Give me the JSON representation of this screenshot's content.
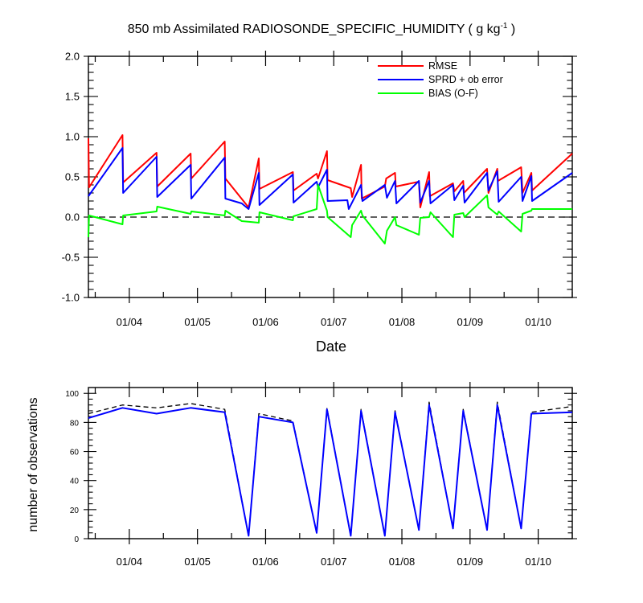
{
  "title_main": "850 mb Assimilated RADIOSONDE_SPECIFIC_HUMIDITY ( g kg",
  "title_sup": "-1",
  "title_end": " )",
  "colors": {
    "rmse": "#ff0000",
    "sprd": "#0000ff",
    "bias": "#00ff00",
    "nobs_used": "#0000ff",
    "nobs_possible": "#000000"
  },
  "chart_data": [
    {
      "type": "line",
      "xlabel": "Date",
      "ylabel": "",
      "x_range": [
        3.4,
        10.5
      ],
      "ylim": [
        -1.0,
        2.0
      ],
      "y_ticks": [
        "2.0",
        "1.5",
        "1.0",
        "0.5",
        "0.0",
        "-0.5",
        "-1.0"
      ],
      "x_ticks": [
        "01/04",
        "01/05",
        "01/06",
        "01/07",
        "01/08",
        "01/09",
        "01/10"
      ],
      "zero_line": "dashed",
      "legend": [
        "RMSE",
        "SPRD + ob error",
        "BIAS (O-F)"
      ],
      "legend_position": "top-right",
      "series": [
        {
          "name": "RMSE",
          "x": [
            3.4,
            3.41,
            3.9,
            3.91,
            4.4,
            4.41,
            4.9,
            4.91,
            5.4,
            5.41,
            5.75,
            5.9,
            5.91,
            6.4,
            6.41,
            6.75,
            6.77,
            6.9,
            6.91,
            7.25,
            7.27,
            7.4,
            7.41,
            7.75,
            7.77,
            7.9,
            7.91,
            8.25,
            8.27,
            8.4,
            8.41,
            8.75,
            8.77,
            8.9,
            8.91,
            9.25,
            9.27,
            9.4,
            9.41,
            9.75,
            9.77,
            9.9,
            9.91,
            10.5
          ],
          "y": [
            0.98,
            0.37,
            1.02,
            0.43,
            0.8,
            0.38,
            0.79,
            0.48,
            0.94,
            0.48,
            0.12,
            0.73,
            0.35,
            0.56,
            0.33,
            0.54,
            0.48,
            0.82,
            0.46,
            0.36,
            0.25,
            0.65,
            0.23,
            0.38,
            0.48,
            0.55,
            0.38,
            0.44,
            0.12,
            0.56,
            0.26,
            0.42,
            0.32,
            0.45,
            0.3,
            0.6,
            0.3,
            0.6,
            0.45,
            0.62,
            0.3,
            0.55,
            0.33,
            0.79
          ]
        },
        {
          "name": "SPRD + ob error",
          "x": [
            3.4,
            3.9,
            3.91,
            4.4,
            4.41,
            4.9,
            4.91,
            5.4,
            5.41,
            5.65,
            5.75,
            5.9,
            5.91,
            6.4,
            6.41,
            6.75,
            6.77,
            6.9,
            6.91,
            7.2,
            7.22,
            7.4,
            7.42,
            7.75,
            7.78,
            7.9,
            7.92,
            8.25,
            8.27,
            8.4,
            8.42,
            8.75,
            8.77,
            8.9,
            8.92,
            9.25,
            9.27,
            9.4,
            9.42,
            9.75,
            9.77,
            9.9,
            9.91,
            10.5
          ],
          "y": [
            0.26,
            0.86,
            0.3,
            0.75,
            0.25,
            0.65,
            0.23,
            0.74,
            0.23,
            0.17,
            0.1,
            0.55,
            0.15,
            0.53,
            0.18,
            0.44,
            0.37,
            0.59,
            0.2,
            0.21,
            0.1,
            0.4,
            0.2,
            0.4,
            0.24,
            0.45,
            0.17,
            0.45,
            0.18,
            0.45,
            0.17,
            0.4,
            0.21,
            0.39,
            0.18,
            0.55,
            0.33,
            0.57,
            0.19,
            0.5,
            0.2,
            0.51,
            0.2,
            0.55
          ]
        },
        {
          "name": "BIAS (O-F)",
          "x": [
            3.4,
            3.41,
            3.9,
            3.91,
            4.4,
            4.41,
            4.9,
            4.91,
            5.4,
            5.41,
            5.65,
            5.9,
            5.91,
            6.4,
            6.41,
            6.75,
            6.77,
            6.9,
            6.91,
            7.25,
            7.27,
            7.4,
            7.42,
            7.75,
            7.78,
            7.9,
            7.92,
            8.25,
            8.27,
            8.4,
            8.42,
            8.75,
            8.77,
            8.9,
            8.92,
            9.25,
            9.27,
            9.4,
            9.42,
            9.75,
            9.77,
            9.9,
            9.91,
            10.5
          ],
          "y": [
            -0.25,
            0.02,
            -0.09,
            0.02,
            0.07,
            0.13,
            0.04,
            0.07,
            0.02,
            0.08,
            -0.05,
            -0.07,
            0.06,
            -0.04,
            0.01,
            0.1,
            0.4,
            0.08,
            0.0,
            -0.25,
            -0.1,
            0.08,
            0.02,
            -0.33,
            -0.17,
            0.0,
            -0.1,
            -0.22,
            -0.01,
            0.0,
            0.06,
            -0.25,
            0.03,
            0.05,
            0.0,
            0.27,
            0.12,
            0.03,
            0.07,
            -0.18,
            0.04,
            0.08,
            0.1,
            0.1
          ]
        }
      ]
    },
    {
      "type": "line",
      "xlabel": "",
      "ylabel": "number of observations",
      "x_range": [
        3.4,
        10.5
      ],
      "ylim": [
        0,
        100
      ],
      "y_ticks": [
        "0",
        "20",
        "40",
        "60",
        "80",
        "100"
      ],
      "x_ticks": [
        "01/04",
        "01/05",
        "01/06",
        "01/07",
        "01/08",
        "01/09",
        "01/10"
      ],
      "series": [
        {
          "style": "solid",
          "x": [
            3.4,
            3.9,
            4.4,
            4.9,
            5.4,
            5.75,
            5.9,
            6.4,
            6.75,
            6.9,
            7.25,
            7.4,
            7.75,
            7.9,
            8.25,
            8.4,
            8.75,
            8.9,
            9.25,
            9.4,
            9.75,
            9.9,
            10.5
          ],
          "y": [
            83,
            90,
            86,
            90,
            87,
            2,
            84,
            80,
            4,
            89,
            2,
            88,
            2,
            87,
            6,
            92,
            7,
            88,
            6,
            92,
            7,
            86,
            87
          ]
        },
        {
          "style": "dashed",
          "x": [
            3.4,
            3.9,
            4.4,
            4.9,
            5.4,
            5.75,
            5.9,
            6.4,
            6.75,
            6.9,
            7.25,
            7.4,
            7.75,
            7.9,
            8.25,
            8.4,
            8.75,
            8.9,
            9.25,
            9.4,
            9.75,
            9.9,
            10.5
          ],
          "y": [
            86,
            92,
            90,
            93,
            89,
            2,
            86,
            81,
            4,
            90,
            2,
            89,
            2,
            88,
            6,
            94,
            7,
            89,
            6,
            94,
            7,
            87,
            91
          ]
        }
      ]
    }
  ]
}
